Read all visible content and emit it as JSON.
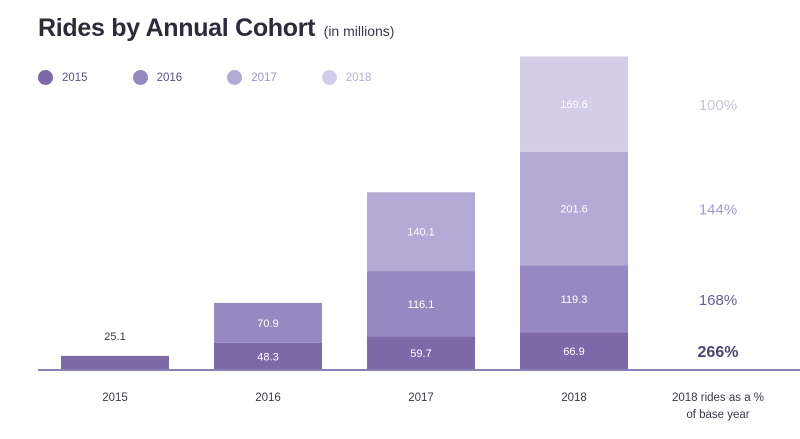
{
  "chart_data": {
    "type": "bar",
    "stacked": true,
    "title": "Rides by Annual Cohort",
    "subtitle": "(in millions)",
    "categories": [
      "2015",
      "2016",
      "2017",
      "2018"
    ],
    "series": [
      {
        "name": "2015",
        "color": "#7c6aa8",
        "label_color": "#ffffff",
        "values": [
          25.1,
          48.3,
          59.7,
          66.9
        ]
      },
      {
        "name": "2016",
        "color": "#9689c2",
        "label_color": "#ffffff",
        "values": [
          null,
          70.9,
          116.1,
          119.3
        ]
      },
      {
        "name": "2017",
        "color": "#b4aad6",
        "label_color": "#ffffff",
        "values": [
          null,
          null,
          140.1,
          201.6
        ]
      },
      {
        "name": "2018",
        "color": "#d3cde7",
        "label_color": "#ffffff",
        "values": [
          null,
          null,
          null,
          169.6
        ]
      }
    ],
    "bar_labels": [
      [
        "25.1",
        null,
        null,
        null
      ],
      [
        "48.3",
        "70.9",
        null,
        null
      ],
      [
        "59.7",
        "116.1",
        "140.1",
        null
      ],
      [
        "66.9",
        "119.3",
        "201.6",
        "169.6"
      ]
    ],
    "first_bar_label_above": true,
    "ylim": [
      0,
      560
    ],
    "side_column": {
      "header": "2018 rides as a % of base year",
      "header_lines": [
        "2018 rides as a %",
        "of base year"
      ],
      "values": [
        "266%",
        "168%",
        "144%",
        "100%"
      ],
      "colors": [
        "#4e4470",
        "#6a5e96",
        "#a69cc8",
        "#c9c3e0"
      ]
    },
    "xlabel": "",
    "ylabel": "",
    "grid": false
  },
  "colors": {
    "axis": "#8a7fb6",
    "tick_text": "#3a3a48",
    "title": "#2b2b3a"
  }
}
